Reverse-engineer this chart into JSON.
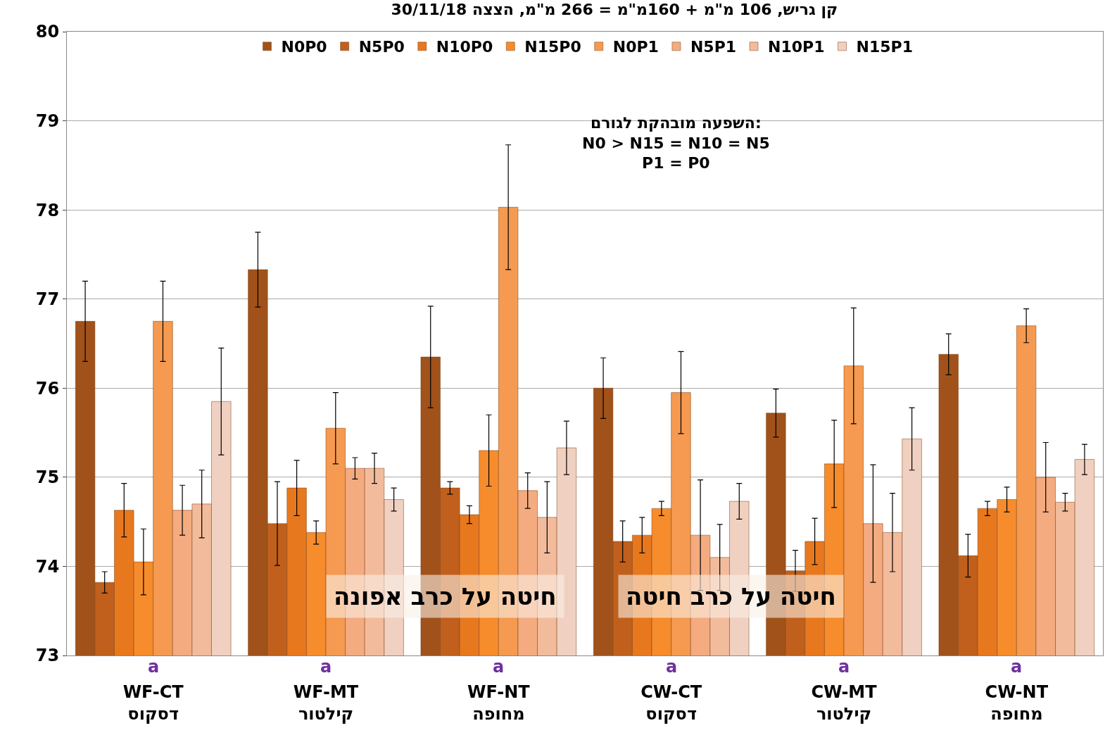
{
  "chart_data": {
    "type": "bar",
    "title": "קן גריש, 106 מ\"מ + 160מ\"מ = 266 מ\"מ, הצצה 30/11/18",
    "categories": [
      "WF-CT\nדסקוס",
      "WF-MT\nקילטור",
      "WF-NT\nמחופה",
      "CW-CT\nדסקוס",
      "CW-MT\nקילטור",
      "CW-NT\nמחופה"
    ],
    "series": [
      {
        "name": "N0P0",
        "color": "#a0521a",
        "values": [
          76.75,
          77.33,
          76.35,
          76.0,
          75.72,
          76.38
        ],
        "errors": [
          0.45,
          0.42,
          0.57,
          0.34,
          0.27,
          0.23
        ]
      },
      {
        "name": "N5P0",
        "color": "#c0601c",
        "values": [
          73.82,
          74.48,
          74.88,
          74.28,
          73.95,
          74.12
        ],
        "errors": [
          0.12,
          0.47,
          0.07,
          0.23,
          0.23,
          0.24
        ]
      },
      {
        "name": "N10P0",
        "color": "#e8781e",
        "values": [
          74.63,
          74.88,
          74.58,
          74.35,
          74.28,
          74.65
        ],
        "errors": [
          0.3,
          0.31,
          0.1,
          0.2,
          0.26,
          0.08
        ]
      },
      {
        "name": "N15P0",
        "color": "#f68c2c",
        "values": [
          74.05,
          74.38,
          75.3,
          74.65,
          75.15,
          74.75
        ],
        "errors": [
          0.37,
          0.13,
          0.4,
          0.08,
          0.49,
          0.14
        ]
      },
      {
        "name": "N0P1",
        "color": "#f59a50",
        "values": [
          76.75,
          75.55,
          78.03,
          75.95,
          76.25,
          76.7
        ],
        "errors": [
          0.45,
          0.4,
          0.7,
          0.46,
          0.65,
          0.19
        ]
      },
      {
        "name": "N5P1",
        "color": "#f4ab80",
        "values": [
          74.63,
          75.1,
          74.85,
          74.35,
          74.48,
          75.0
        ],
        "errors": [
          0.28,
          0.12,
          0.2,
          0.62,
          0.66,
          0.39
        ]
      },
      {
        "name": "N10P1",
        "color": "#f2bc9c",
        "values": [
          74.7,
          75.1,
          74.55,
          74.1,
          74.38,
          74.72
        ],
        "errors": [
          0.38,
          0.17,
          0.4,
          0.37,
          0.44,
          0.1
        ]
      },
      {
        "name": "N15P1",
        "color": "#f0d0c0",
        "values": [
          75.85,
          74.75,
          75.33,
          74.73,
          75.43,
          75.2
        ],
        "errors": [
          0.6,
          0.13,
          0.3,
          0.2,
          0.35,
          0.17
        ]
      }
    ],
    "ylim": [
      73,
      80
    ],
    "yticks": [
      73,
      74,
      75,
      76,
      77,
      78,
      79,
      80
    ],
    "grid": "y",
    "legend": "top",
    "annotations": [
      "השפעה מובהקת לגורם:\nN0 > N15 = N10 = N5\nP1 = P0",
      "חיטה על כרב אפונה",
      "חיטה על כרב חיטה",
      "a",
      "a",
      "a",
      "a",
      "a",
      "a"
    ]
  }
}
